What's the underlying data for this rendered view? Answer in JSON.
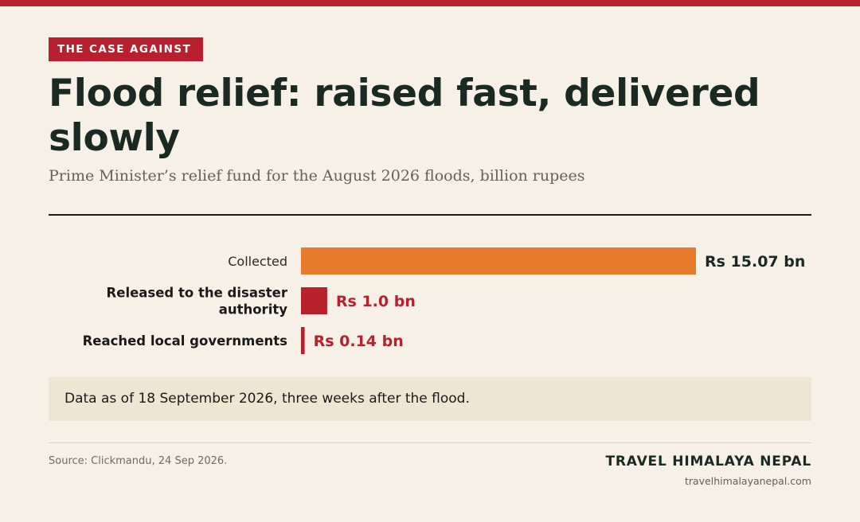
{
  "kicker": "THE CASE AGAINST",
  "title": "Flood relief: raised fast, delivered slowly",
  "subtitle": "Prime Minister’s relief fund for the August 2026 floods, billion rupees",
  "note": "Data as of 18 September 2026, three weeks after the flood.",
  "source": "Source: Clickmandu, 24 Sep 2026.",
  "brand": "TRAVEL HIMALAYA NEPAL",
  "site": "travelhimalayanepal.com",
  "colors": {
    "accent": "#b8202e",
    "collected_bar": "#e87b2b",
    "title_text": "#1a2a23",
    "background": "#f6f0e6"
  },
  "chart_data": {
    "type": "bar",
    "orientation": "horizontal",
    "categories": [
      "Collected",
      "Released to the disaster authority",
      "Reached local governments"
    ],
    "values": [
      15.07,
      1.0,
      0.14
    ],
    "value_labels": [
      "Rs 15.07 bn",
      "Rs 1.0 bn",
      "Rs 0.14 bn"
    ],
    "bar_colors": [
      "#e87b2b",
      "#b8202e",
      "#b8202e"
    ],
    "label_colors": [
      "#1a2a23",
      "#b8202e",
      "#b8202e"
    ],
    "category_emphasis": [
      "normal",
      "bold",
      "bold"
    ],
    "xlim": [
      0,
      15.07
    ],
    "grid": false,
    "legend": "none"
  }
}
